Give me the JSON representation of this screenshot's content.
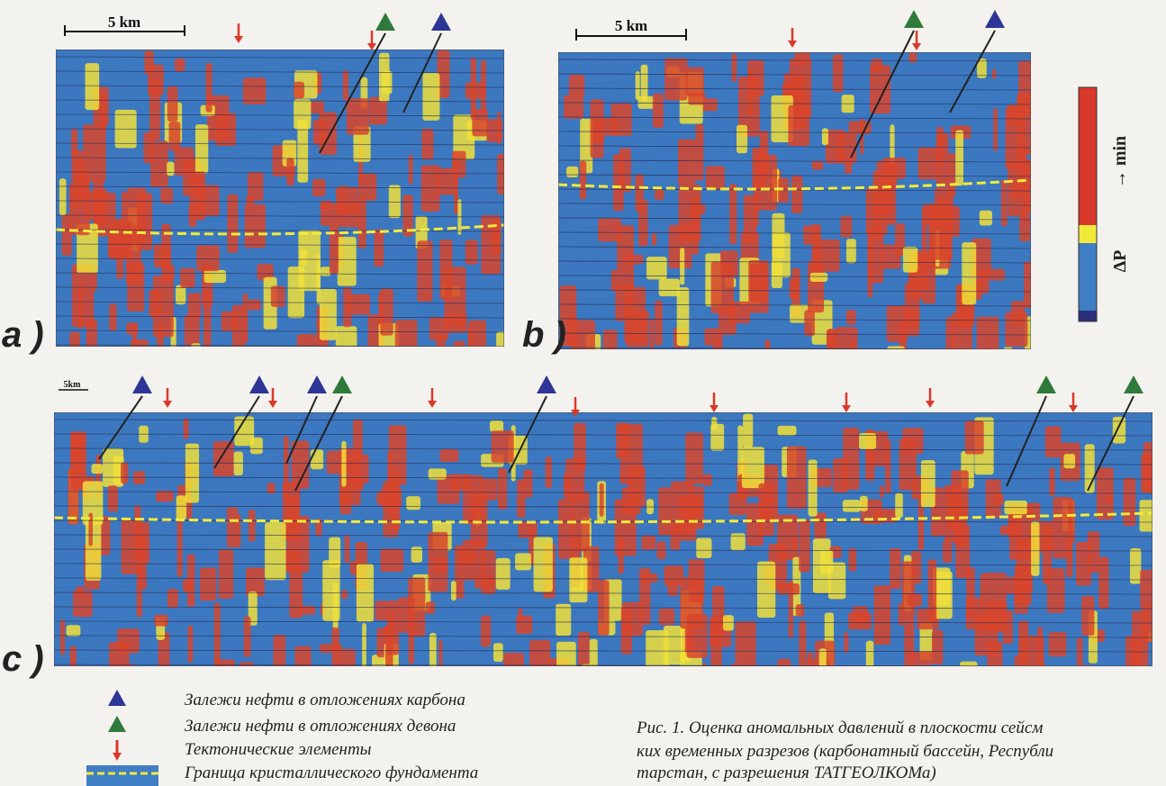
{
  "panels": [
    {
      "label": "a )",
      "scale": "5 km"
    },
    {
      "label": "b )",
      "scale": "5 km"
    },
    {
      "label": "c )",
      "scale": "5km"
    }
  ],
  "colorbar": {
    "symbol": "ΔP",
    "direction": "→ min"
  },
  "legend": [
    "Залежи нефти в отложениях карбона",
    "Залежи нефти в отложениях девона",
    "Тектонические элементы",
    "Граница кристаллического фундамента"
  ],
  "caption": [
    "Рис. 1. Оценка аномальных давлений в плоскости сейсм",
    "ких временных разрезов (карбонатный бассейн, Республи",
    "тарстан, с разрешения ТАТГЕОЛКОМа)"
  ]
}
